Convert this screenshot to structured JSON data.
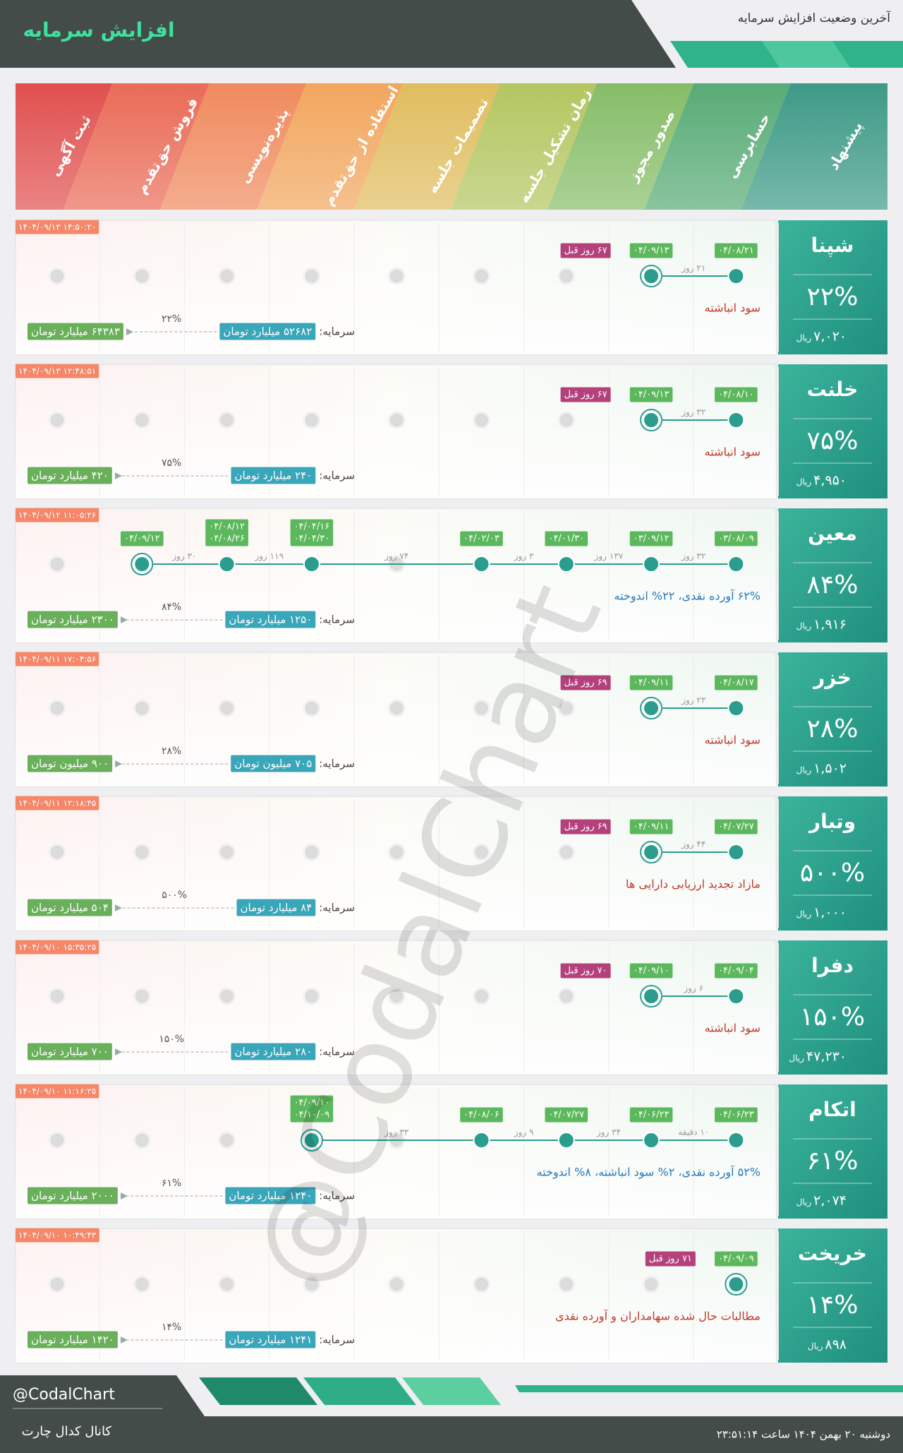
{
  "header": {
    "title": "افزایش سرمایه",
    "subtitle": "آخرین وضعیت افزایش سرمایه"
  },
  "stages": [
    "ثبت آگهی",
    "فروش حق‌تقدم",
    "پذیره‌نویسی",
    "استفاده از حق‌تقدم",
    "تصمیمات جلسه",
    "زمان تشکیل جلسه",
    "صدور مجوز",
    "حسابرسی",
    "پیشنهاد"
  ],
  "labels": {
    "capital": "سرمایه:",
    "currency": "ریال"
  },
  "companies": [
    {
      "name": "شپنا",
      "percent": "۲۲%",
      "price": "۷,۰۲۰",
      "timestamp": "۱۴۰۴/۰۹/۱۳ ۱۴:۵۰:۲۰",
      "dates": [
        null,
        null,
        null,
        null,
        null,
        null,
        null,
        [
          "۰۴/۰۹/۱۳"
        ],
        [
          "۰۴/۰۸/۲۱"
        ]
      ],
      "gaps": [
        "۲۱ روز"
      ],
      "days_ago": "۶۷ روز قبل",
      "note": "سود انباشته",
      "note_color": "#c0392b",
      "capital": "۵۲۶۸۲ میلیارد تومان",
      "target": "۶۴۳۸۳ میلیارد تومان",
      "increase": "۲۲%"
    },
    {
      "name": "خلنت",
      "percent": "۷۵%",
      "price": "۴,۹۵۰",
      "timestamp": "۱۴۰۴/۰۹/۱۳ ۱۲:۴۸:۵۱",
      "dates": [
        null,
        null,
        null,
        null,
        null,
        null,
        null,
        [
          "۰۴/۰۹/۱۳"
        ],
        [
          "۰۴/۰۸/۱۰"
        ]
      ],
      "gaps": [
        "۳۲ روز"
      ],
      "days_ago": "۶۷ روز قبل",
      "note": "سود انباشته",
      "note_color": "#c0392b",
      "capital": "۲۴۰ میلیارد تومان",
      "target": "۴۲۰ میلیارد تومان",
      "increase": "۷۵%"
    },
    {
      "name": "معین",
      "percent": "۸۴%",
      "price": "۱,۹۱۶",
      "timestamp": "۱۴۰۴/۰۹/۱۲ ۱۱:۰۵:۲۶",
      "dates": [
        null,
        [
          "۰۴/۰۹/۱۲"
        ],
        [
          "۰۴/۰۸/۱۲",
          "۰۴/۰۸/۲۶"
        ],
        [
          "۰۴/۰۴/۱۶",
          "۰۴/۰۴/۳۰"
        ],
        null,
        [
          "۰۴/۰۲/۰۳"
        ],
        [
          "۰۴/۰۱/۳۰"
        ],
        [
          "۰۳/۰۹/۱۲"
        ],
        [
          "۰۳/۰۸/۰۹"
        ]
      ],
      "gaps": [
        "۳۲ روز",
        "۱۳۷ روز",
        "۳ روز",
        "۷۴ روز",
        "۱۱۹ روز",
        "۳۰ روز"
      ],
      "days_ago": null,
      "note": "۶۲% آورده نقدی، ۲۲% اندوخته",
      "note_color": "#2a7ab8",
      "capital": "۱۲۵۰ میلیارد تومان",
      "target": "۲۳۰۰ میلیارد تومان",
      "increase": "۸۴%"
    },
    {
      "name": "خزر",
      "percent": "۲۸%",
      "price": "۱,۵۰۲",
      "timestamp": "۱۴۰۴/۰۹/۱۱ ۱۷:۰۴:۵۶",
      "dates": [
        null,
        null,
        null,
        null,
        null,
        null,
        null,
        [
          "۰۴/۰۹/۱۱"
        ],
        [
          "۰۴/۰۸/۱۷"
        ]
      ],
      "gaps": [
        "۲۳ روز"
      ],
      "days_ago": "۶۹ روز قبل",
      "note": "سود انباشته",
      "note_color": "#c0392b",
      "capital": "۷۰۵ میلیون تومان",
      "target": "۹۰۰ میلیون تومان",
      "increase": "۲۸%"
    },
    {
      "name": "وتبار",
      "percent": "۵۰۰%",
      "price": "۱,۰۰۰",
      "timestamp": "۱۴۰۴/۰۹/۱۱ ۱۲:۱۸:۴۵",
      "dates": [
        null,
        null,
        null,
        null,
        null,
        null,
        null,
        [
          "۰۴/۰۹/۱۱"
        ],
        [
          "۰۴/۰۷/۲۷"
        ]
      ],
      "gaps": [
        "۴۴ روز"
      ],
      "days_ago": "۶۹ روز قبل",
      "note": "مازاد تجدید ارزیابی دارایی ها",
      "note_color": "#c0392b",
      "capital": "۸۴ میلیارد تومان",
      "target": "۵۰۴ میلیارد تومان",
      "increase": "۵۰۰%"
    },
    {
      "name": "دفرا",
      "percent": "۱۵۰%",
      "price": "۴۷,۲۳۰",
      "timestamp": "۱۴۰۴/۰۹/۱۰ ۱۵:۳۵:۲۵",
      "dates": [
        null,
        null,
        null,
        null,
        null,
        null,
        null,
        [
          "۰۴/۰۹/۱۰"
        ],
        [
          "۰۴/۰۹/۰۴"
        ]
      ],
      "gaps": [
        "۶ روز"
      ],
      "days_ago": "۷۰ روز قبل",
      "note": "سود انباشته",
      "note_color": "#c0392b",
      "capital": "۲۸۰ میلیارد تومان",
      "target": "۷۰۰ میلیارد تومان",
      "increase": "۱۵۰%"
    },
    {
      "name": "اتکام",
      "percent": "۶۱%",
      "price": "۲,۰۷۴",
      "timestamp": "۱۴۰۴/۰۹/۱۰ ۱۱:۱۶:۲۵",
      "dates": [
        null,
        null,
        null,
        [
          "۰۴/۰۹/۱۰",
          "۰۴/۱۰/۰۹"
        ],
        null,
        [
          "۰۴/۰۸/۰۶"
        ],
        [
          "۰۴/۰۷/۲۷"
        ],
        [
          "۰۴/۰۶/۲۳"
        ],
        [
          "۰۴/۰۶/۲۳"
        ]
      ],
      "gaps": [
        "۱۰ دقیقه",
        "۳۴ روز",
        "۹ روز",
        "۳۳ روز"
      ],
      "days_ago": null,
      "note": "۵۲% آورده نقدی، ۲% سود انباشته، ۸% اندوخته",
      "note_color": "#2a7ab8",
      "capital": "۱۲۴۰ میلیارد تومان",
      "target": "۲۰۰۰ میلیارد تومان",
      "increase": "۶۱%"
    },
    {
      "name": "خریخت",
      "percent": "۱۴%",
      "price": "۸۹۸",
      "timestamp": "۱۴۰۴/۰۹/۱۰ ۱۰:۴۹:۴۳",
      "dates": [
        null,
        null,
        null,
        null,
        null,
        null,
        null,
        null,
        [
          "۰۴/۰۹/۰۹"
        ]
      ],
      "gaps": [],
      "days_ago": "۷۱ روز قبل",
      "note": "مطالبات حال شده سهامداران و آورده نقدی",
      "note_color": "#c0392b",
      "capital": "۱۲۴۱ میلیارد تومان",
      "target": "۱۴۲۰ میلیارد تومان",
      "increase": "۱۴%"
    }
  ],
  "footer": {
    "handle": "@CodalChart",
    "channel": "کانال کدال چارت",
    "datetime": "دوشنبه ۲۰ بهمن ۱۴۰۴ ساعت ۲۳:۵۱:۱۴"
  }
}
